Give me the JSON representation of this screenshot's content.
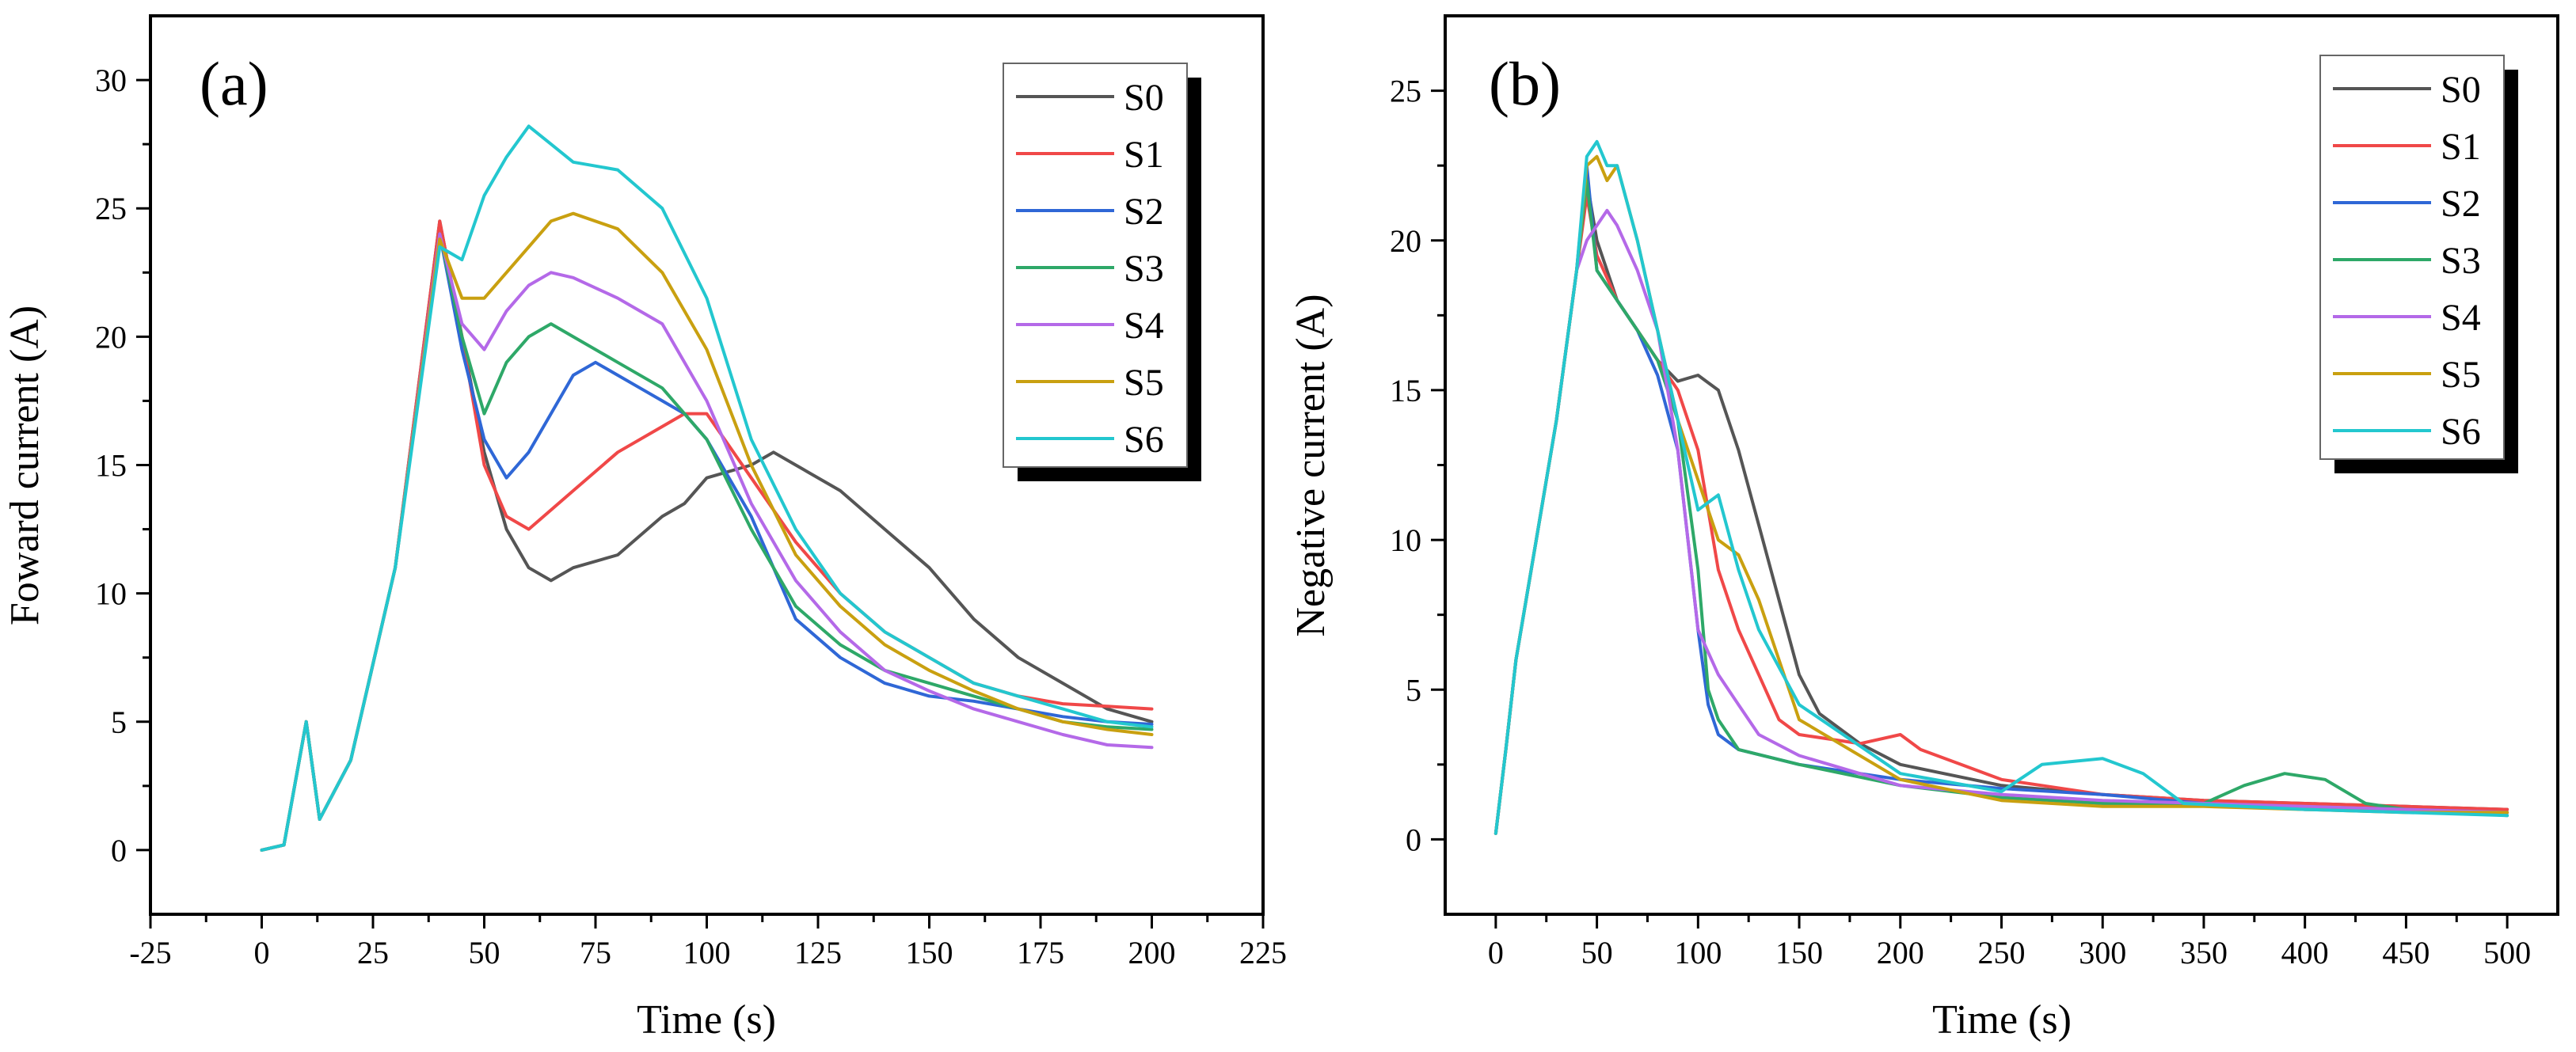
{
  "colors": {
    "S0": "#555555",
    "S1": "#f04848",
    "S2": "#2f67d6",
    "S3": "#2ea868",
    "S4": "#b469e8",
    "S5": "#c9a010",
    "S6": "#23c7cf"
  },
  "chart_data": [
    {
      "type": "line",
      "panel_label": "(a)",
      "xlabel": "Time (s)",
      "ylabel": "Foward current (A)",
      "xlim": [
        -25,
        225
      ],
      "ylim": [
        -2.5,
        32.5
      ],
      "xticks": [
        -25,
        0,
        25,
        50,
        75,
        100,
        125,
        150,
        175,
        200,
        225
      ],
      "yticks": [
        0,
        5,
        10,
        15,
        20,
        25,
        30
      ],
      "grid": false,
      "legend": "top-right",
      "series": [
        {
          "name": "S0",
          "x": [
            0,
            5,
            10,
            13,
            20,
            30,
            40,
            45,
            50,
            55,
            60,
            65,
            70,
            80,
            90,
            95,
            100,
            110,
            115,
            120,
            130,
            140,
            150,
            160,
            170,
            180,
            190,
            200
          ],
          "y": [
            0,
            0.2,
            5,
            1.2,
            3.5,
            11,
            24.5,
            20,
            15.5,
            12.5,
            11,
            10.5,
            11,
            11.5,
            13,
            13.5,
            14.5,
            15,
            15.5,
            15,
            14,
            12.5,
            11,
            9,
            7.5,
            6.5,
            5.5,
            5
          ]
        },
        {
          "name": "S1",
          "x": [
            0,
            5,
            10,
            13,
            20,
            30,
            40,
            45,
            50,
            55,
            60,
            70,
            80,
            90,
            95,
            100,
            110,
            120,
            130,
            140,
            150,
            160,
            170,
            180,
            190,
            200
          ],
          "y": [
            0,
            0.2,
            5,
            1.2,
            3.5,
            11,
            24.5,
            20,
            15,
            13,
            12.5,
            14,
            15.5,
            16.5,
            17,
            17,
            14.5,
            12,
            10,
            8.5,
            7.5,
            6.5,
            6,
            5.7,
            5.6,
            5.5
          ]
        },
        {
          "name": "S2",
          "x": [
            0,
            5,
            10,
            13,
            20,
            30,
            40,
            45,
            50,
            55,
            60,
            65,
            70,
            75,
            80,
            85,
            90,
            95,
            100,
            110,
            120,
            130,
            140,
            150,
            160,
            170,
            180,
            190,
            200
          ],
          "y": [
            0,
            0.2,
            5,
            1.2,
            3.5,
            11,
            24,
            19.5,
            16,
            14.5,
            15.5,
            17,
            18.5,
            19,
            18.5,
            18,
            17.5,
            17,
            16,
            13,
            9,
            7.5,
            6.5,
            6,
            5.8,
            5.5,
            5.2,
            5,
            4.9
          ]
        },
        {
          "name": "S3",
          "x": [
            0,
            5,
            10,
            13,
            20,
            30,
            40,
            45,
            50,
            55,
            60,
            65,
            70,
            80,
            90,
            100,
            110,
            120,
            130,
            140,
            150,
            160,
            170,
            180,
            190,
            200
          ],
          "y": [
            0,
            0.2,
            5,
            1.2,
            3.5,
            11,
            24,
            20,
            17,
            19,
            20,
            20.5,
            20,
            19,
            18,
            16,
            12.5,
            9.5,
            8,
            7,
            6.5,
            6,
            5.5,
            5,
            4.8,
            4.7
          ]
        },
        {
          "name": "S4",
          "x": [
            0,
            5,
            10,
            13,
            20,
            30,
            40,
            45,
            50,
            55,
            60,
            65,
            70,
            80,
            90,
            100,
            110,
            120,
            130,
            140,
            150,
            160,
            170,
            180,
            190,
            200
          ],
          "y": [
            0,
            0.2,
            5,
            1.2,
            3.5,
            11,
            24,
            20.5,
            19.5,
            21,
            22,
            22.5,
            22.3,
            21.5,
            20.5,
            17.5,
            13.5,
            10.5,
            8.5,
            7,
            6.2,
            5.5,
            5,
            4.5,
            4.1,
            4
          ]
        },
        {
          "name": "S5",
          "x": [
            0,
            5,
            10,
            13,
            20,
            30,
            40,
            45,
            50,
            55,
            60,
            65,
            70,
            80,
            90,
            100,
            110,
            120,
            130,
            140,
            150,
            160,
            170,
            180,
            190,
            200
          ],
          "y": [
            0,
            0.2,
            5,
            1.2,
            3.5,
            11,
            23.8,
            21.5,
            21.5,
            22.5,
            23.5,
            24.5,
            24.8,
            24.2,
            22.5,
            19.5,
            15,
            11.5,
            9.5,
            8,
            7,
            6.2,
            5.5,
            5,
            4.7,
            4.5
          ]
        },
        {
          "name": "S6",
          "x": [
            0,
            5,
            10,
            13,
            20,
            30,
            40,
            45,
            50,
            55,
            60,
            65,
            70,
            80,
            90,
            100,
            110,
            120,
            130,
            140,
            150,
            160,
            170,
            180,
            190,
            200
          ],
          "y": [
            0,
            0.2,
            5,
            1.2,
            3.5,
            11,
            23.5,
            23,
            25.5,
            27,
            28.2,
            27.5,
            26.8,
            26.5,
            25,
            21.5,
            16,
            12.5,
            10,
            8.5,
            7.5,
            6.5,
            6,
            5.5,
            5,
            4.8
          ]
        }
      ]
    },
    {
      "type": "line",
      "panel_label": "(b)",
      "xlabel": "Time (s)",
      "ylabel": "Negative current (A)",
      "xlim": [
        -25,
        525
      ],
      "ylim": [
        -2.5,
        27.5
      ],
      "xticks": [
        0,
        50,
        100,
        150,
        200,
        250,
        300,
        350,
        400,
        450,
        500
      ],
      "yticks": [
        0,
        5,
        10,
        15,
        20,
        25
      ],
      "grid": false,
      "legend": "top-right",
      "series": [
        {
          "name": "S0",
          "x": [
            0,
            5,
            10,
            20,
            30,
            40,
            45,
            50,
            60,
            70,
            80,
            90,
            100,
            110,
            120,
            130,
            140,
            150,
            160,
            180,
            200,
            250,
            300,
            350,
            400,
            450,
            500
          ],
          "y": [
            0.2,
            3,
            6,
            10,
            14,
            19,
            22,
            20,
            18,
            17,
            16,
            15.3,
            15.5,
            15,
            13,
            10.5,
            8,
            5.5,
            4.2,
            3.2,
            2.5,
            1.8,
            1.5,
            1.3,
            1.2,
            1.1,
            1
          ]
        },
        {
          "name": "S1",
          "x": [
            0,
            5,
            10,
            20,
            30,
            40,
            45,
            50,
            60,
            70,
            80,
            90,
            100,
            105,
            110,
            120,
            130,
            140,
            150,
            180,
            200,
            210,
            230,
            250,
            300,
            350,
            400,
            450,
            500
          ],
          "y": [
            0.2,
            3,
            6,
            10,
            14,
            19,
            21.5,
            19.5,
            18,
            17,
            16,
            15,
            13,
            11,
            9,
            7,
            5.5,
            4,
            3.5,
            3.2,
            3.5,
            3,
            2.5,
            2,
            1.5,
            1.3,
            1.2,
            1.1,
            1
          ]
        },
        {
          "name": "S2",
          "x": [
            0,
            5,
            10,
            20,
            30,
            40,
            45,
            50,
            60,
            70,
            80,
            90,
            100,
            105,
            110,
            120,
            150,
            200,
            250,
            300,
            350,
            400,
            450,
            500
          ],
          "y": [
            0.2,
            3,
            6,
            10,
            14,
            19,
            22.5,
            19,
            18,
            17,
            15.5,
            13,
            7,
            4.5,
            3.5,
            3,
            2.5,
            2,
            1.7,
            1.5,
            1.2,
            1,
            1,
            0.9
          ]
        },
        {
          "name": "S3",
          "x": [
            0,
            5,
            10,
            20,
            30,
            40,
            45,
            50,
            60,
            70,
            80,
            90,
            100,
            105,
            110,
            120,
            150,
            200,
            250,
            300,
            350,
            370,
            390,
            410,
            430,
            450,
            500
          ],
          "y": [
            0.2,
            3,
            6,
            10,
            14,
            19,
            22,
            19,
            18,
            17,
            16,
            14,
            9,
            5,
            4,
            3,
            2.5,
            1.8,
            1.4,
            1.2,
            1.2,
            1.8,
            2.2,
            2,
            1.2,
            1,
            0.8
          ]
        },
        {
          "name": "S4",
          "x": [
            0,
            5,
            10,
            20,
            30,
            40,
            45,
            50,
            55,
            60,
            70,
            80,
            90,
            100,
            110,
            120,
            130,
            150,
            200,
            250,
            300,
            350,
            400,
            450,
            500
          ],
          "y": [
            0.2,
            3,
            6,
            10,
            14,
            19,
            20,
            20.5,
            21,
            20.5,
            19,
            17,
            13,
            7,
            5.5,
            4.5,
            3.5,
            2.8,
            1.8,
            1.5,
            1.3,
            1.2,
            1.1,
            1,
            0.9
          ]
        },
        {
          "name": "S5",
          "x": [
            0,
            5,
            10,
            20,
            30,
            40,
            45,
            50,
            55,
            60,
            70,
            80,
            90,
            100,
            110,
            120,
            130,
            150,
            200,
            250,
            300,
            350,
            400,
            450,
            500
          ],
          "y": [
            0.2,
            3,
            6,
            10,
            14,
            19,
            22.5,
            22.8,
            22,
            22.5,
            20,
            17,
            14,
            12,
            10,
            9.5,
            8,
            4,
            2,
            1.3,
            1.1,
            1.1,
            1,
            0.9,
            0.9
          ]
        },
        {
          "name": "S6",
          "x": [
            0,
            5,
            10,
            20,
            30,
            40,
            45,
            50,
            55,
            60,
            70,
            80,
            90,
            100,
            110,
            120,
            130,
            150,
            200,
            250,
            270,
            300,
            320,
            340,
            400,
            450,
            500
          ],
          "y": [
            0.2,
            3,
            6,
            10,
            14,
            19,
            22.8,
            23.3,
            22.5,
            22.5,
            20,
            17,
            14,
            11,
            11.5,
            9,
            7,
            4.5,
            2.2,
            1.6,
            2.5,
            2.7,
            2.2,
            1.2,
            1,
            0.9,
            0.8
          ]
        }
      ]
    }
  ]
}
